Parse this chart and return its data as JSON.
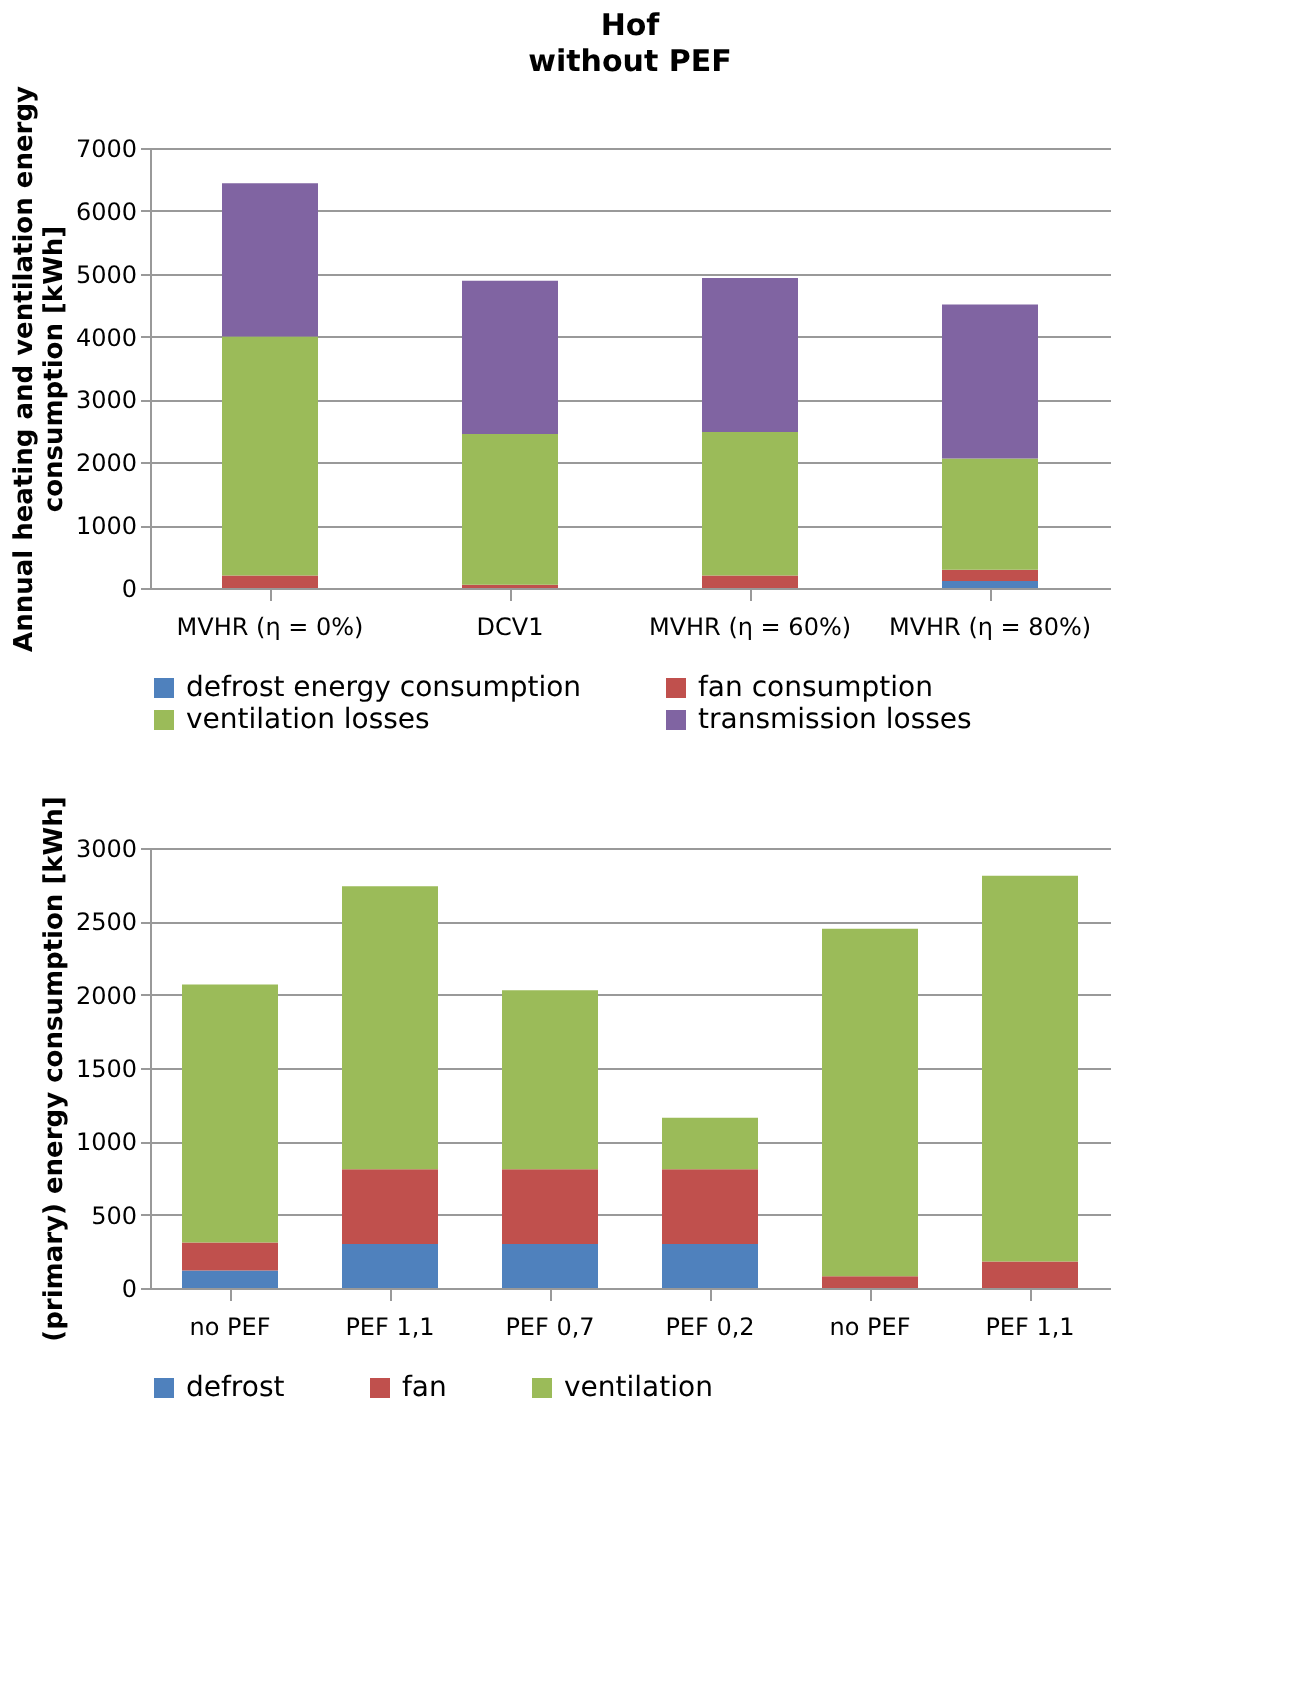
{
  "chart_data": [
    {
      "type": "bar",
      "stacked": true,
      "title": "Hof",
      "subtitle": "without PEF",
      "ylabel": "Annual heating and ventilation energy consumption [kWh]",
      "categories": [
        "MVHR (η = 0%)",
        "DCV1",
        "MVHR (η = 60%)",
        "MVHR (η = 80%)"
      ],
      "ylim": [
        0,
        7000
      ],
      "yticks": [
        0,
        1000,
        2000,
        3000,
        4000,
        5000,
        6000,
        7000
      ],
      "grid": "y",
      "legend": "bottom",
      "series": [
        {
          "name": "defrost energy consumption",
          "color": "#4f81bd",
          "values": [
            0,
            0,
            0,
            110
          ]
        },
        {
          "name": "fan consumption",
          "color": "#c0504d",
          "values": [
            200,
            50,
            200,
            180
          ]
        },
        {
          "name": "ventilation losses",
          "color": "#9bbb59",
          "values": [
            3800,
            2400,
            2280,
            1770
          ]
        },
        {
          "name": "transmission losses",
          "color": "#8064a2",
          "values": [
            2440,
            2440,
            2450,
            2450
          ]
        }
      ]
    },
    {
      "type": "bar",
      "stacked": true,
      "ylabel": "(primary) energy consumption [kWh]",
      "categories": [
        "no PEF",
        "PEF 1,1",
        "PEF 0,7",
        "PEF 0,2",
        "no PEF",
        "PEF 1,1"
      ],
      "ylim": [
        0,
        3000
      ],
      "yticks": [
        0,
        500,
        1000,
        1500,
        2000,
        2500,
        3000
      ],
      "grid": "y",
      "legend": "bottom",
      "series": [
        {
          "name": "defrost",
          "color": "#4f81bd",
          "values": [
            120,
            300,
            300,
            300,
            0,
            0
          ]
        },
        {
          "name": "fan",
          "color": "#c0504d",
          "values": [
            190,
            510,
            510,
            510,
            80,
            180
          ]
        },
        {
          "name": "ventilation",
          "color": "#9bbb59",
          "values": [
            1760,
            1930,
            1220,
            350,
            2370,
            2630
          ]
        }
      ]
    }
  ]
}
